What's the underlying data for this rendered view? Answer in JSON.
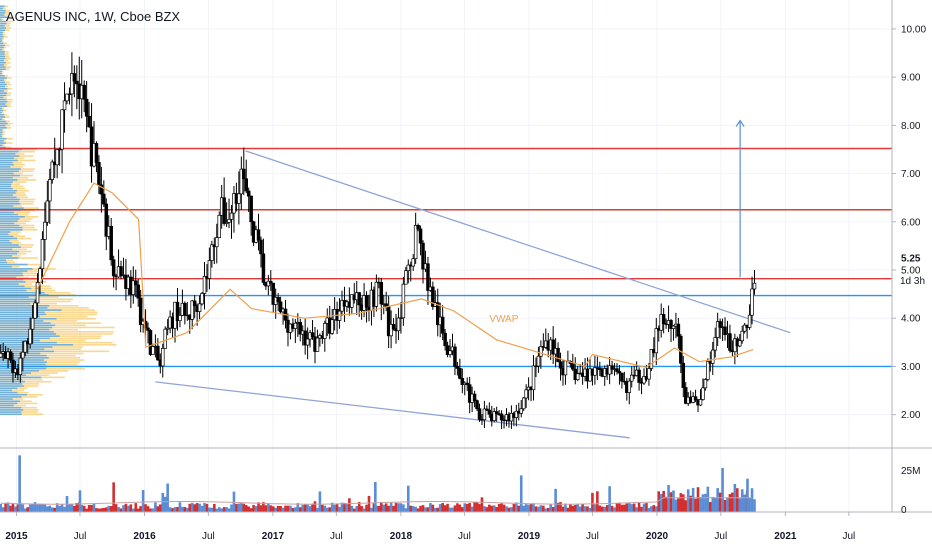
{
  "chart_data": {
    "type": "candlestick",
    "title": "AGENUS INC, 1W, Cboe BZX",
    "price_axis": {
      "ticks": [
        "10.00",
        "9.00",
        "8.00",
        "7.00",
        "6.00",
        "5.00",
        "4.00",
        "3.00",
        "2.00"
      ],
      "ylim": [
        1.35,
        10.6
      ]
    },
    "x_axis": {
      "range": [
        "2014-11-15",
        "2021-11-01"
      ],
      "ticks": [
        {
          "label": "2015",
          "date": "2015-01-01",
          "bold": true
        },
        {
          "label": "Jul",
          "date": "2015-07-01",
          "bold": false
        },
        {
          "label": "2016",
          "date": "2016-01-01",
          "bold": true
        },
        {
          "label": "Jul",
          "date": "2016-07-01",
          "bold": false
        },
        {
          "label": "2017",
          "date": "2017-01-01",
          "bold": true
        },
        {
          "label": "Jul",
          "date": "2017-07-01",
          "bold": false
        },
        {
          "label": "2018",
          "date": "2018-01-01",
          "bold": true
        },
        {
          "label": "Jul",
          "date": "2018-07-01",
          "bold": false
        },
        {
          "label": "2019",
          "date": "2019-01-01",
          "bold": true
        },
        {
          "label": "Jul",
          "date": "2019-07-01",
          "bold": false
        },
        {
          "label": "2020",
          "date": "2020-01-01",
          "bold": true
        },
        {
          "label": "Jul",
          "date": "2020-07-01",
          "bold": false
        },
        {
          "label": "2021",
          "date": "2021-01-01",
          "bold": true
        },
        {
          "label": "Jul",
          "date": "2021-07-01",
          "bold": false
        }
      ]
    },
    "price_path": [
      [
        "2014-11-15",
        3.2
      ],
      [
        "2015-01-05",
        3.0
      ],
      [
        "2015-02-01",
        3.6
      ],
      [
        "2015-03-01",
        4.8
      ],
      [
        "2015-04-01",
        6.8
      ],
      [
        "2015-05-01",
        7.6
      ],
      [
        "2015-06-10",
        9.4
      ],
      [
        "2015-07-01",
        8.6
      ],
      [
        "2015-08-01",
        7.6
      ],
      [
        "2015-09-01",
        6.6
      ],
      [
        "2015-10-01",
        5.2
      ],
      [
        "2015-11-01",
        4.9
      ],
      [
        "2015-12-01",
        4.6
      ],
      [
        "2016-01-15",
        3.5
      ],
      [
        "2016-02-15",
        3.0
      ],
      [
        "2016-03-01",
        3.6
      ],
      [
        "2016-04-01",
        4.2
      ],
      [
        "2016-05-01",
        4.0
      ],
      [
        "2016-06-01",
        4.4
      ],
      [
        "2016-07-01",
        5.0
      ],
      [
        "2016-08-01",
        6.2
      ],
      [
        "2016-09-01",
        6.1
      ],
      [
        "2016-10-01",
        7.1
      ],
      [
        "2016-10-25",
        6.2
      ],
      [
        "2016-11-15",
        5.6
      ],
      [
        "2016-12-10",
        4.7
      ],
      [
        "2017-01-15",
        4.2
      ],
      [
        "2017-03-01",
        3.8
      ],
      [
        "2017-05-01",
        3.5
      ],
      [
        "2017-06-15",
        3.9
      ],
      [
        "2017-08-01",
        4.5
      ],
      [
        "2017-09-15",
        4.3
      ],
      [
        "2017-11-01",
        4.6
      ],
      [
        "2017-12-01",
        3.7
      ],
      [
        "2018-01-01",
        4.2
      ],
      [
        "2018-02-15",
        5.9
      ],
      [
        "2018-03-20",
        4.7
      ],
      [
        "2018-05-01",
        3.6
      ],
      [
        "2018-06-15",
        3.0
      ],
      [
        "2018-08-01",
        2.1
      ],
      [
        "2018-10-01",
        1.9
      ],
      [
        "2018-11-20",
        2.0
      ],
      [
        "2019-01-01",
        2.5
      ],
      [
        "2019-02-01",
        3.3
      ],
      [
        "2019-03-01",
        3.6
      ],
      [
        "2019-04-01",
        3.0
      ],
      [
        "2019-06-01",
        2.8
      ],
      [
        "2019-08-01",
        3.0
      ],
      [
        "2019-10-01",
        2.6
      ],
      [
        "2019-12-01",
        2.9
      ],
      [
        "2020-01-15",
        4.0
      ],
      [
        "2020-03-01",
        3.8
      ],
      [
        "2020-03-20",
        2.4
      ],
      [
        "2020-04-20",
        2.2
      ],
      [
        "2020-05-20",
        2.8
      ],
      [
        "2020-06-20",
        3.8
      ],
      [
        "2020-07-25",
        3.5
      ],
      [
        "2020-08-20",
        3.3
      ],
      [
        "2020-09-20",
        4.1
      ],
      [
        "2020-10-10",
        5.2
      ]
    ],
    "volume": {
      "ticks": [
        "25M",
        "0"
      ],
      "ylim": [
        0,
        36
      ]
    },
    "horizontal_lines": [
      {
        "price": 7.52,
        "color": "#e53935"
      },
      {
        "price": 6.25,
        "color": "#e53935"
      },
      {
        "price": 4.82,
        "color": "#e53935"
      },
      {
        "price": 4.47,
        "color": "#2196f3"
      },
      {
        "price": 3.0,
        "color": "#2196f3"
      }
    ],
    "trendlines": [
      {
        "from": [
          "2016-10-15",
          7.47
        ],
        "to": [
          "2021-01-15",
          3.7
        ],
        "color": "#90a4d4"
      },
      {
        "from": [
          "2016-02-01",
          2.68
        ],
        "to": [
          "2019-10-15",
          1.52
        ],
        "color": "#90a4d4"
      }
    ],
    "target_arrow": {
      "date": "2020-08-25",
      "from": 4.85,
      "to": 8.1,
      "color": "#5b8dd6"
    },
    "vwap": {
      "label": "VWAP",
      "color": "#f0a04b",
      "points": [
        [
          "2015-03-01",
          4.6
        ],
        [
          "2015-06-01",
          6.0
        ],
        [
          "2015-08-10",
          6.8
        ],
        [
          "2015-10-01",
          6.6
        ],
        [
          "2015-12-15",
          6.05
        ],
        [
          "2016-01-05",
          3.4
        ],
        [
          "2016-05-01",
          3.7
        ],
        [
          "2016-09-01",
          4.6
        ],
        [
          "2016-11-01",
          4.2
        ],
        [
          "2017-04-01",
          4.0
        ],
        [
          "2017-09-01",
          4.1
        ],
        [
          "2018-03-01",
          4.4
        ],
        [
          "2018-06-01",
          4.15
        ],
        [
          "2018-10-01",
          3.55
        ],
        [
          "2019-03-01",
          3.22
        ],
        [
          "2019-06-10",
          3.0
        ],
        [
          "2019-07-01",
          3.25
        ],
        [
          "2019-12-01",
          2.98
        ],
        [
          "2020-02-20",
          3.38
        ],
        [
          "2020-05-01",
          3.1
        ],
        [
          "2020-08-01",
          3.2
        ],
        [
          "2020-10-01",
          3.35
        ]
      ]
    },
    "current_price": {
      "value": "5.25"
    },
    "countdown": {
      "value": "1d 3h",
      "price": 4.78
    }
  }
}
